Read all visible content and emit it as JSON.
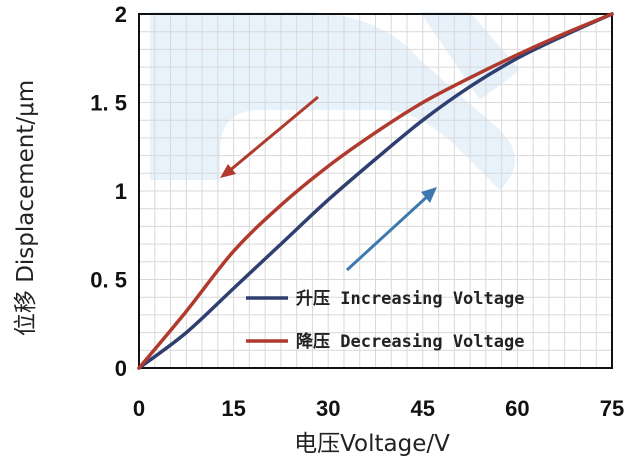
{
  "chart_data": {
    "type": "line",
    "title": "",
    "xlabel": "电压Voltage/V",
    "ylabel": "位移 Displacement/μm",
    "xlim": [
      0,
      75
    ],
    "ylim": [
      0,
      2
    ],
    "x_ticks": [
      0,
      15,
      30,
      45,
      60,
      75
    ],
    "y_ticks": [
      0,
      0.5,
      1,
      1.5,
      2
    ],
    "x_tick_labels": [
      "0",
      "15",
      "30",
      "45",
      "60",
      "75"
    ],
    "y_tick_labels": [
      "0",
      "0. 5",
      "1",
      "1. 5",
      "2"
    ],
    "grid": "vertical and horizontal gridlines",
    "legend_position": "bottom-right",
    "series": [
      {
        "name": "升压 Increasing Voltage",
        "color": "#2f3f6f",
        "x": [
          0,
          7.5,
          15,
          22.5,
          30,
          37.5,
          45,
          52.5,
          60,
          67.5,
          75
        ],
        "values": [
          0.0,
          0.2,
          0.45,
          0.7,
          0.95,
          1.18,
          1.4,
          1.59,
          1.75,
          1.88,
          2.0
        ]
      },
      {
        "name": "降压 Decreasing Voltage",
        "color": "#b03a2e",
        "x": [
          0,
          7.5,
          15,
          22.5,
          30,
          37.5,
          45,
          52.5,
          60,
          67.5,
          75
        ],
        "values": [
          0.0,
          0.32,
          0.66,
          0.92,
          1.14,
          1.33,
          1.5,
          1.64,
          1.77,
          1.89,
          2.0
        ]
      }
    ],
    "annotations": [
      {
        "type": "arrow",
        "color": "#b03a2e",
        "meaning": "decreasing voltage direction"
      },
      {
        "type": "arrow",
        "color": "#3f78b0",
        "meaning": "increasing voltage direction"
      }
    ]
  }
}
